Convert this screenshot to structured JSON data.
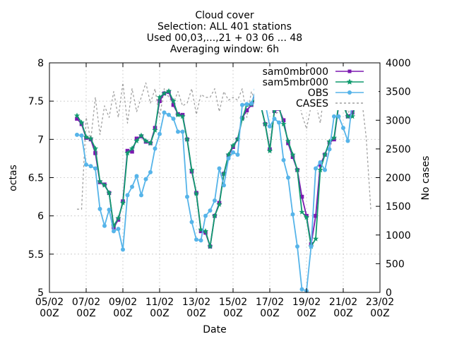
{
  "chart_data": {
    "type": "line",
    "title_lines": [
      "Cloud cover",
      "Selection: ALL    401 stations",
      "Used 00,03,...,21 + 03 06 ... 48",
      "Averaging window:  6h"
    ],
    "xlabel": "Date",
    "ylabel": "octas",
    "y2label": "No cases",
    "xlim": [
      0,
      18
    ],
    "ylim": [
      5,
      8
    ],
    "y2lim": [
      0,
      4000
    ],
    "x_unit": "days since 05/02 00Z",
    "x_ticks": [
      0,
      2,
      4,
      6,
      8,
      10,
      12,
      14,
      16,
      18
    ],
    "x_tick_labels": [
      [
        "05/02",
        "00Z"
      ],
      [
        "07/02",
        "00Z"
      ],
      [
        "09/02",
        "00Z"
      ],
      [
        "11/02",
        "00Z"
      ],
      [
        "13/02",
        "00Z"
      ],
      [
        "15/02",
        "00Z"
      ],
      [
        "17/02",
        "00Z"
      ],
      [
        "19/02",
        "00Z"
      ],
      [
        "21/02",
        "00Z"
      ],
      [
        "23/02",
        "00Z"
      ]
    ],
    "y_ticks": [
      5,
      5.5,
      6,
      6.5,
      7,
      7.5,
      8
    ],
    "y_tick_labels": [
      "5",
      "5.5",
      "6",
      "6.5",
      "7",
      "7.5",
      "8"
    ],
    "y2_ticks": [
      0,
      500,
      1000,
      1500,
      2000,
      2500,
      3000,
      3500,
      4000
    ],
    "y2_tick_labels": [
      "0",
      "500",
      "1000",
      "1500",
      "2000",
      "2500",
      "3000",
      "3500",
      "4000"
    ],
    "legend_position": "top-right",
    "grid": true,
    "series": [
      {
        "name": "sam0mbr000",
        "axis": "left",
        "color": "#7b19b0",
        "marker": "square",
        "x": [
          1.5,
          1.75,
          2.0,
          2.25,
          2.5,
          2.75,
          3.0,
          3.25,
          3.5,
          3.75,
          4.0,
          4.25,
          4.5,
          4.75,
          5.0,
          5.25,
          5.5,
          5.75,
          6.0,
          6.25,
          6.5,
          6.75,
          7.0,
          7.25,
          7.5,
          7.75,
          8.0,
          8.25,
          8.5,
          8.75,
          9.0,
          9.25,
          9.5,
          9.75,
          10.0,
          10.25,
          10.5,
          10.75,
          11.0,
          11.25,
          11.5,
          11.75,
          12.0,
          12.25,
          12.5,
          12.75,
          13.0,
          13.25,
          13.5,
          13.75,
          14.0,
          14.25,
          14.5,
          14.75,
          15.0,
          15.25,
          15.5,
          15.75,
          16.0,
          16.25,
          16.5,
          16.75,
          17.0,
          17.25,
          17.5
        ],
        "y": [
          7.27,
          7.2,
          7.02,
          7.0,
          6.82,
          6.44,
          6.41,
          6.3,
          5.85,
          5.95,
          6.19,
          6.85,
          6.84,
          7.01,
          7.04,
          6.97,
          6.95,
          7.15,
          7.5,
          7.6,
          7.62,
          7.45,
          7.33,
          7.32,
          7.0,
          6.58,
          6.3,
          5.8,
          5.78,
          5.6,
          6.0,
          6.17,
          6.55,
          6.79,
          6.9,
          7.0,
          7.28,
          7.38,
          7.45,
          7.53,
          7.46,
          7.2,
          6.87,
          7.37,
          7.4,
          7.25,
          6.95,
          6.77,
          6.6,
          6.25,
          6.0,
          5.63,
          6.0,
          6.67,
          6.8,
          6.96,
          7.0,
          7.44,
          7.45,
          7.3,
          7.35,
          7.5,
          7.6,
          7.6,
          7.6
        ]
      },
      {
        "name": "sam5mbr000",
        "axis": "left",
        "color": "#109a6e",
        "marker": "star",
        "x": [
          1.5,
          1.75,
          2.0,
          2.25,
          2.5,
          2.75,
          3.0,
          3.25,
          3.5,
          3.75,
          4.0,
          4.25,
          4.5,
          4.75,
          5.0,
          5.25,
          5.5,
          5.75,
          6.0,
          6.25,
          6.5,
          6.75,
          7.0,
          7.25,
          7.5,
          7.75,
          8.0,
          8.25,
          8.5,
          8.75,
          9.0,
          9.25,
          9.5,
          9.75,
          10.0,
          10.25,
          10.5,
          10.75,
          11.0,
          11.25,
          11.5,
          11.75,
          12.0,
          12.25,
          12.5,
          12.75,
          13.0,
          13.25,
          13.5,
          13.75,
          14.0,
          14.25,
          14.5,
          14.75,
          15.0,
          15.25,
          15.5,
          15.75,
          16.0,
          16.25,
          16.5,
          16.75,
          17.0,
          17.25,
          17.5
        ],
        "y": [
          7.31,
          7.22,
          7.03,
          7.01,
          6.88,
          6.45,
          6.4,
          6.3,
          5.87,
          5.97,
          6.17,
          6.82,
          6.88,
          6.98,
          7.05,
          6.98,
          6.95,
          7.12,
          7.55,
          7.6,
          7.63,
          7.5,
          7.32,
          7.3,
          7.0,
          6.6,
          6.29,
          5.82,
          5.8,
          5.6,
          6.0,
          6.15,
          6.55,
          6.8,
          6.92,
          7.0,
          7.27,
          7.45,
          7.46,
          7.55,
          7.45,
          7.2,
          6.85,
          7.38,
          7.42,
          7.2,
          6.98,
          6.8,
          6.6,
          6.05,
          5.98,
          5.6,
          5.7,
          6.6,
          6.8,
          6.97,
          7.02,
          7.46,
          7.44,
          7.3,
          7.3,
          7.55,
          7.6,
          7.7,
          7.62
        ]
      },
      {
        "name": "OBS",
        "axis": "left",
        "color": "#56b4e9",
        "marker": "circle",
        "x": [
          1.5,
          1.75,
          2.0,
          2.25,
          2.5,
          2.75,
          3.0,
          3.25,
          3.5,
          3.75,
          4.0,
          4.25,
          4.5,
          4.75,
          5.0,
          5.25,
          5.5,
          5.75,
          6.0,
          6.25,
          6.5,
          6.75,
          7.0,
          7.25,
          7.5,
          7.75,
          8.0,
          8.25,
          8.5,
          8.75,
          9.0,
          9.25,
          9.5,
          9.75,
          10.0,
          10.25,
          10.5,
          10.75,
          11.0,
          11.25,
          11.5,
          11.75,
          12.0,
          12.25,
          12.5,
          12.75,
          13.0,
          13.25,
          13.5,
          13.75,
          14.0,
          14.25,
          14.5,
          14.75,
          15.0,
          15.25,
          15.5,
          15.75,
          16.0,
          16.25,
          16.5,
          16.75,
          17.0,
          17.25,
          17.5
        ],
        "y": [
          7.06,
          7.05,
          6.67,
          6.65,
          6.62,
          6.09,
          5.87,
          6.08,
          5.8,
          5.83,
          5.56,
          6.27,
          6.38,
          6.52,
          6.27,
          6.48,
          6.57,
          6.88,
          7.07,
          7.35,
          7.32,
          7.27,
          7.1,
          7.1,
          6.25,
          5.92,
          5.69,
          5.68,
          6.0,
          6.07,
          6.2,
          6.62,
          6.4,
          6.75,
          6.83,
          6.8,
          7.45,
          7.46,
          7.47,
          7.65,
          7.62,
          7.47,
          7.17,
          7.27,
          7.22,
          6.73,
          6.5,
          6.02,
          5.6,
          5.04,
          5.02,
          5.6,
          6.62,
          6.7,
          6.6,
          6.87,
          7.3,
          7.3,
          7.15,
          6.98,
          7.5,
          7.6,
          7.65,
          7.5,
          7.5
        ]
      },
      {
        "name": "CASES",
        "axis": "right",
        "color": "#a0a0a0",
        "marker": "none",
        "dashed": true,
        "x": [
          1.5,
          1.75,
          2.0,
          2.25,
          2.5,
          2.75,
          3.0,
          3.25,
          3.5,
          3.75,
          4.0,
          4.25,
          4.5,
          4.75,
          5.0,
          5.25,
          5.5,
          5.75,
          6.0,
          6.25,
          6.5,
          6.75,
          7.0,
          7.25,
          7.5,
          7.75,
          8.0,
          8.25,
          8.5,
          8.75,
          9.0,
          9.25,
          9.5,
          9.75,
          10.0,
          10.25,
          10.5,
          10.75,
          11.0,
          11.25,
          11.5,
          11.75,
          12.0,
          12.25,
          12.5,
          12.75,
          13.0,
          13.25,
          13.5,
          13.75,
          14.0,
          14.25,
          14.5,
          14.75,
          15.0,
          15.25,
          15.5,
          15.75,
          16.0,
          16.25,
          16.5,
          16.75,
          17.0,
          17.25,
          17.5
        ],
        "y": [
          1450,
          1450,
          3050,
          2650,
          3400,
          2750,
          3250,
          3050,
          3500,
          3050,
          3650,
          2950,
          3550,
          3150,
          3400,
          3650,
          3300,
          3550,
          3050,
          3550,
          3400,
          3300,
          3500,
          3250,
          3300,
          3550,
          3100,
          3450,
          3400,
          3400,
          3550,
          3150,
          3500,
          3350,
          3400,
          3350,
          3550,
          3050,
          3500,
          3300,
          3400,
          3250,
          3650,
          3100,
          3150,
          3300,
          3550,
          3300,
          3450,
          3100,
          2850,
          3250,
          3300,
          2950,
          3600,
          3400,
          3550,
          3650,
          3500,
          3050,
          3500,
          3650,
          3400,
          2700,
          1450
        ]
      }
    ]
  }
}
